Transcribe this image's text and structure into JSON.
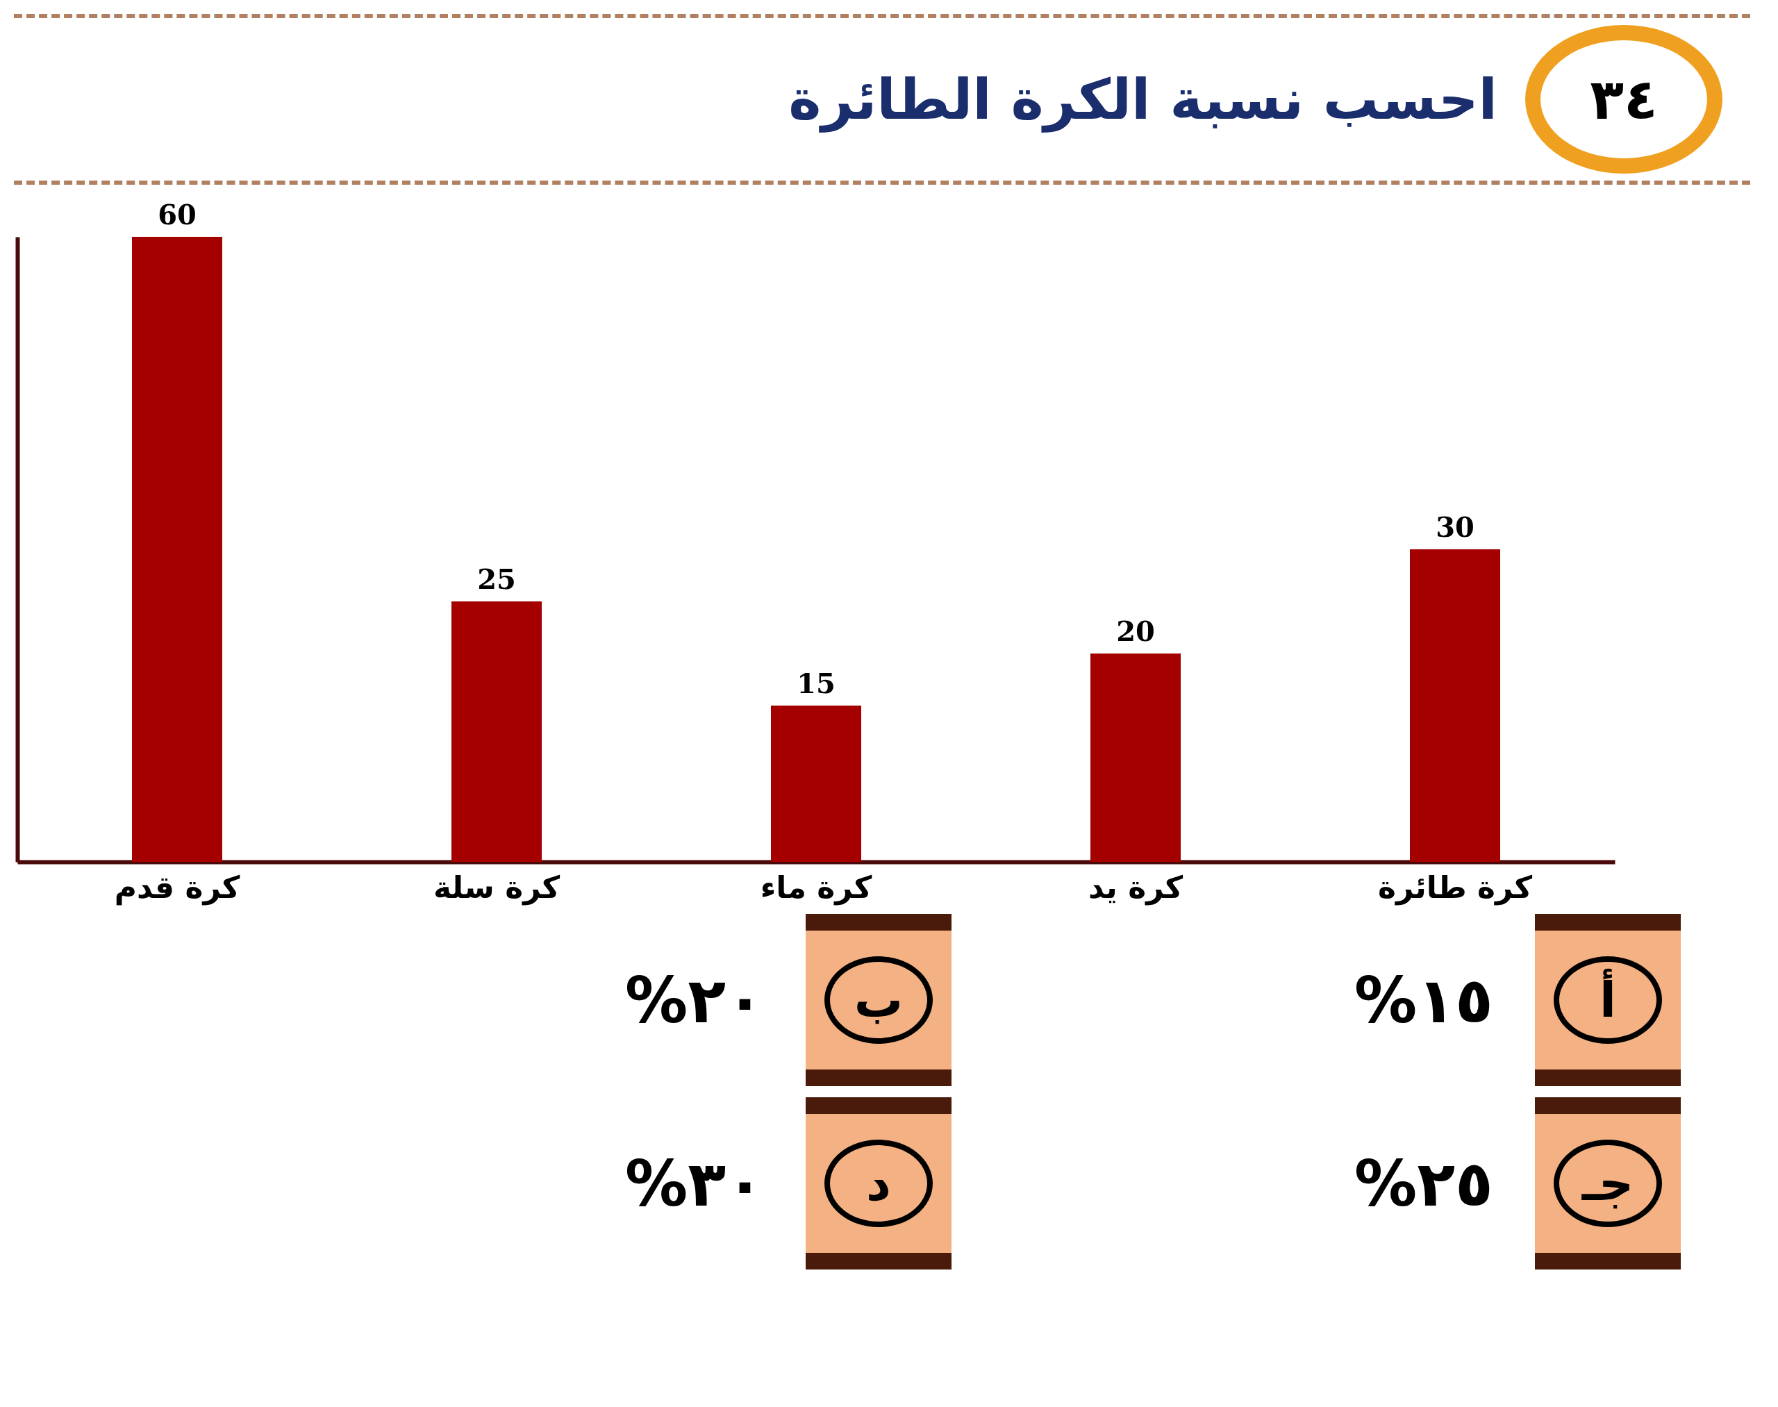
{
  "chart_data": {
    "type": "bar",
    "title": "احسب نسبة الكرة الطائرة",
    "categories": [
      "كرة قدم",
      "كرة سلة",
      "كرة ماء",
      "كرة يد",
      "كرة طائرة"
    ],
    "values": [
      60,
      25,
      15,
      20,
      30
    ],
    "color": "#a50000",
    "data_labels": true,
    "grid": false,
    "tick_labels": "x",
    "annotations": [
      "٣٤",
      "أ",
      "١٥%",
      "ب",
      "٢٠%",
      "جـ",
      "٢٥%",
      "د",
      "٣٠%"
    ]
  }
}
